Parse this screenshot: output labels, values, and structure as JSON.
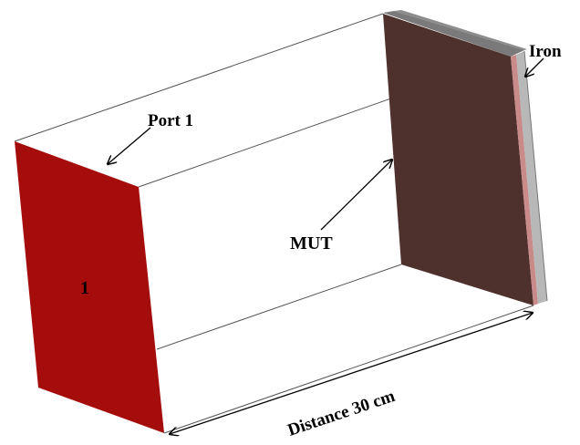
{
  "labels": {
    "port": "Port 1",
    "mut": "MUT",
    "iron": "Iron",
    "distance": "Distance 30 cm",
    "port_number": "1"
  },
  "colors": {
    "port_face": "#a50d0d",
    "mut_face": "#4e302c",
    "mut_top": "#7a7a7a",
    "mut_edge_pink": "#c98a8a",
    "iron_face": "#b8b8b8",
    "iron_top": "#8c8c8c",
    "box_edge": "#555555"
  }
}
